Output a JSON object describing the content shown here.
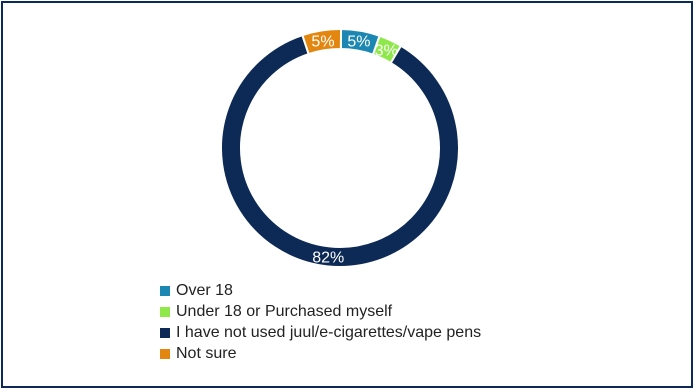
{
  "chart_data": {
    "type": "pie",
    "donut": true,
    "series": [
      {
        "name": "Over 18",
        "value": 5,
        "label": "5%",
        "color": "#1d87b3"
      },
      {
        "name": "Under 18 or Purchased myself",
        "value": 3,
        "label": "3%",
        "color": "#8fe84a"
      },
      {
        "name": "I have not used juul/e-cigarettes/vape pens",
        "value": 82,
        "label": "82%",
        "color": "#0c2a55"
      },
      {
        "name": "Not sure",
        "value": 5,
        "label": "5%",
        "color": "#e3860f"
      }
    ],
    "legend_position": "bottom"
  }
}
